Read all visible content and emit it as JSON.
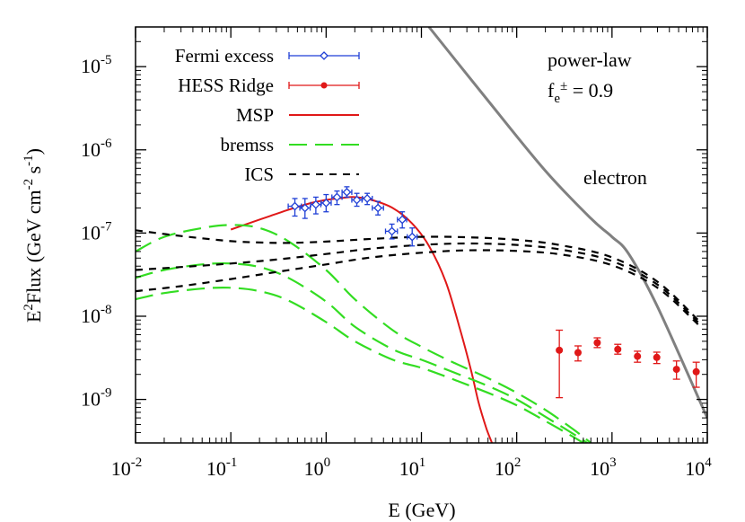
{
  "chart_data": {
    "type": "line",
    "xlabel": "E (GeV)",
    "ylabel_main": "E",
    "ylabel_sup1": "2",
    "ylabel_mid": "Flux (GeV cm",
    "ylabel_sup2": "-2",
    "ylabel_mid2": " s",
    "ylabel_sup3": "-1",
    "ylabel_end": ")",
    "xscale": "log",
    "yscale": "log",
    "xlim": [
      0.01,
      10000
    ],
    "ylim": [
      3e-10,
      3e-05
    ],
    "x_ticks": [
      {
        "value": 0.01,
        "base": "10",
        "exp": "-2"
      },
      {
        "value": 0.1,
        "base": "10",
        "exp": "-1"
      },
      {
        "value": 1,
        "base": "10",
        "exp": "0"
      },
      {
        "value": 10,
        "base": "10",
        "exp": "1"
      },
      {
        "value": 100,
        "base": "10",
        "exp": "2"
      },
      {
        "value": 1000,
        "base": "10",
        "exp": "3"
      },
      {
        "value": 10000,
        "base": "10",
        "exp": "4"
      }
    ],
    "y_ticks": [
      {
        "value": 1e-09,
        "base": "10",
        "exp": "-9"
      },
      {
        "value": 1e-08,
        "base": "10",
        "exp": "-8"
      },
      {
        "value": 1e-07,
        "base": "10",
        "exp": "-7"
      },
      {
        "value": 1e-06,
        "base": "10",
        "exp": "-6"
      },
      {
        "value": 1e-05,
        "base": "10",
        "exp": "-5"
      }
    ],
    "annotations": {
      "model": "power-law",
      "fraction_base": "f",
      "fraction_sub": "e",
      "fraction_sup": "±",
      "fraction_value": " = 0.9",
      "electron_label": "electron"
    },
    "legend": [
      {
        "label": "Fermi excess",
        "color": "#1f3fd6",
        "style": "errorbar-diamond"
      },
      {
        "label": "HESS Ridge",
        "color": "#e01818",
        "style": "errorbar-circle"
      },
      {
        "label": "MSP",
        "color": "#e01818",
        "style": "solid"
      },
      {
        "label": "bremss",
        "color": "#33dd22",
        "style": "long-dash"
      },
      {
        "label": "ICS",
        "color": "#000000",
        "style": "short-dash"
      }
    ],
    "series": [
      {
        "id": "electron",
        "color": "#808080",
        "style": "solid",
        "points": [
          [
            12,
            3e-05
          ],
          [
            50,
            3.9e-06
          ],
          [
            200,
            5.6e-07
          ],
          [
            600,
            1.5e-07
          ],
          [
            1000,
            9e-08
          ],
          [
            1500,
            5.6e-08
          ],
          [
            3000,
            1.3e-08
          ],
          [
            10000,
            6e-10
          ]
        ]
      },
      {
        "id": "msp",
        "color": "#e01818",
        "style": "solid",
        "points": [
          [
            0.1,
            1.1e-07
          ],
          [
            0.2,
            1.45e-07
          ],
          [
            0.4,
            1.9e-07
          ],
          [
            0.7,
            2.3e-07
          ],
          [
            1,
            2.5e-07
          ],
          [
            1.5,
            2.65e-07
          ],
          [
            2,
            2.7e-07
          ],
          [
            3,
            2.5e-07
          ],
          [
            5,
            2e-07
          ],
          [
            8,
            1.3e-07
          ],
          [
            12,
            7e-08
          ],
          [
            18,
            2.6e-08
          ],
          [
            25,
            7.5e-09
          ],
          [
            33,
            2.3e-09
          ],
          [
            40,
            9e-10
          ],
          [
            48,
            4.5e-10
          ],
          [
            55,
            3e-10
          ]
        ]
      },
      {
        "id": "bremss-1",
        "color": "#33dd22",
        "style": "long-dash",
        "points": [
          [
            0.01,
            6e-08
          ],
          [
            0.02,
            9e-08
          ],
          [
            0.05,
            1.15e-07
          ],
          [
            0.1,
            1.25e-07
          ],
          [
            0.2,
            1.15e-07
          ],
          [
            0.4,
            8e-08
          ],
          [
            1,
            3.6e-08
          ],
          [
            2,
            1.6e-08
          ],
          [
            5,
            6.8e-09
          ],
          [
            10,
            4.3e-09
          ],
          [
            20,
            2.9e-09
          ],
          [
            50,
            1.8e-09
          ],
          [
            100,
            1.2e-09
          ],
          [
            200,
            7.5e-10
          ],
          [
            400,
            4.3e-10
          ],
          [
            600,
            3e-10
          ]
        ]
      },
      {
        "id": "bremss-2",
        "color": "#33dd22",
        "style": "long-dash",
        "points": [
          [
            0.01,
            2.9e-08
          ],
          [
            0.02,
            3.6e-08
          ],
          [
            0.05,
            4.2e-08
          ],
          [
            0.1,
            4.3e-08
          ],
          [
            0.2,
            3.9e-08
          ],
          [
            0.4,
            2.9e-08
          ],
          [
            1,
            1.5e-08
          ],
          [
            2,
            7.5e-09
          ],
          [
            5,
            4e-09
          ],
          [
            10,
            3e-09
          ],
          [
            20,
            2.2e-09
          ],
          [
            50,
            1.45e-09
          ],
          [
            100,
            1e-09
          ],
          [
            200,
            6.2e-10
          ],
          [
            400,
            3.8e-10
          ],
          [
            550,
            3e-10
          ]
        ]
      },
      {
        "id": "bremss-3",
        "color": "#33dd22",
        "style": "long-dash",
        "points": [
          [
            0.01,
            1.6e-08
          ],
          [
            0.02,
            1.9e-08
          ],
          [
            0.05,
            2.15e-08
          ],
          [
            0.1,
            2.2e-08
          ],
          [
            0.2,
            2e-08
          ],
          [
            0.4,
            1.55e-08
          ],
          [
            1,
            8.5e-09
          ],
          [
            2,
            5e-09
          ],
          [
            5,
            3e-09
          ],
          [
            10,
            2.4e-09
          ],
          [
            20,
            1.8e-09
          ],
          [
            50,
            1.2e-09
          ],
          [
            100,
            8.5e-10
          ],
          [
            200,
            5.5e-10
          ],
          [
            400,
            3.5e-10
          ],
          [
            500,
            3e-10
          ]
        ]
      },
      {
        "id": "ics-1",
        "color": "#000000",
        "style": "short-dash",
        "points": [
          [
            0.01,
            1.08e-07
          ],
          [
            0.03,
            9.2e-08
          ],
          [
            0.1,
            8e-08
          ],
          [
            0.2,
            7.7e-08
          ],
          [
            0.4,
            7.6e-08
          ],
          [
            1,
            7.9e-08
          ],
          [
            3,
            8.5e-08
          ],
          [
            10,
            9e-08
          ],
          [
            30,
            8.9e-08
          ],
          [
            100,
            8.3e-08
          ],
          [
            300,
            7.1e-08
          ],
          [
            1000,
            5.1e-08
          ],
          [
            3000,
            2.6e-08
          ],
          [
            8000,
            9e-09
          ]
        ]
      },
      {
        "id": "ics-2",
        "color": "#000000",
        "style": "short-dash",
        "points": [
          [
            0.01,
            3.6e-08
          ],
          [
            0.03,
            3.9e-08
          ],
          [
            0.1,
            4.3e-08
          ],
          [
            0.3,
            4.8e-08
          ],
          [
            1,
            5.6e-08
          ],
          [
            3,
            6.5e-08
          ],
          [
            10,
            7.2e-08
          ],
          [
            30,
            7.5e-08
          ],
          [
            100,
            7.2e-08
          ],
          [
            300,
            6.3e-08
          ],
          [
            1000,
            4.6e-08
          ],
          [
            3000,
            2.4e-08
          ],
          [
            8000,
            8.5e-09
          ]
        ]
      },
      {
        "id": "ics-3",
        "color": "#000000",
        "style": "short-dash",
        "points": [
          [
            0.01,
            2e-08
          ],
          [
            0.03,
            2.3e-08
          ],
          [
            0.1,
            2.8e-08
          ],
          [
            0.3,
            3.4e-08
          ],
          [
            1,
            4.2e-08
          ],
          [
            3,
            5.1e-08
          ],
          [
            10,
            5.8e-08
          ],
          [
            30,
            6.2e-08
          ],
          [
            100,
            6.1e-08
          ],
          [
            300,
            5.5e-08
          ],
          [
            1000,
            4.1e-08
          ],
          [
            3000,
            2.2e-08
          ],
          [
            8000,
            8e-09
          ]
        ]
      }
    ],
    "fermi_points": [
      {
        "x": 0.47,
        "y": 2.1e-07,
        "xlo": 0.4,
        "xhi": 0.55,
        "ylo": 1.6e-07,
        "yhi": 2.6e-07
      },
      {
        "x": 0.6,
        "y": 2e-07,
        "xlo": 0.53,
        "xhi": 0.68,
        "ylo": 1.5e-07,
        "yhi": 2.6e-07
      },
      {
        "x": 0.78,
        "y": 2.2e-07,
        "xlo": 0.69,
        "xhi": 0.88,
        "ylo": 1.7e-07,
        "yhi": 2.7e-07
      },
      {
        "x": 1.0,
        "y": 2.3e-07,
        "xlo": 0.89,
        "xhi": 1.13,
        "ylo": 1.8e-07,
        "yhi": 2.9e-07
      },
      {
        "x": 1.3,
        "y": 2.7e-07,
        "xlo": 1.15,
        "xhi": 1.47,
        "ylo": 2.2e-07,
        "yhi": 3.2e-07
      },
      {
        "x": 1.65,
        "y": 3.1e-07,
        "xlo": 1.47,
        "xhi": 1.86,
        "ylo": 2.7e-07,
        "yhi": 3.6e-07
      },
      {
        "x": 2.1,
        "y": 2.5e-07,
        "xlo": 1.86,
        "xhi": 2.38,
        "ylo": 2.1e-07,
        "yhi": 3e-07
      },
      {
        "x": 2.7,
        "y": 2.6e-07,
        "xlo": 2.4,
        "xhi": 3.05,
        "ylo": 2.2e-07,
        "yhi": 3e-07
      },
      {
        "x": 3.5,
        "y": 2e-07,
        "xlo": 3.05,
        "xhi": 4.0,
        "ylo": 1.65e-07,
        "yhi": 2.4e-07
      },
      {
        "x": 4.9,
        "y": 1.05e-07,
        "xlo": 4.2,
        "xhi": 5.6,
        "ylo": 8.5e-08,
        "yhi": 1.28e-07
      },
      {
        "x": 6.3,
        "y": 1.45e-07,
        "xlo": 5.6,
        "xhi": 7.0,
        "ylo": 1.15e-07,
        "yhi": 1.8e-07
      },
      {
        "x": 8.0,
        "y": 9e-08,
        "xlo": 7.1,
        "xhi": 9.0,
        "ylo": 7e-08,
        "yhi": 1.15e-07
      }
    ],
    "hess_points": [
      {
        "x": 280,
        "y": 3.9e-09,
        "ylo": 1.05e-09,
        "yhi": 6.8e-09
      },
      {
        "x": 440,
        "y": 3.65e-09,
        "ylo": 2.9e-09,
        "yhi": 4.4e-09
      },
      {
        "x": 700,
        "y": 4.8e-09,
        "ylo": 4.2e-09,
        "yhi": 5.5e-09
      },
      {
        "x": 1150,
        "y": 4e-09,
        "ylo": 3.5e-09,
        "yhi": 4.6e-09
      },
      {
        "x": 1850,
        "y": 3.3e-09,
        "ylo": 2.8e-09,
        "yhi": 3.8e-09
      },
      {
        "x": 2950,
        "y": 3.2e-09,
        "ylo": 2.7e-09,
        "yhi": 3.7e-09
      },
      {
        "x": 4750,
        "y": 2.3e-09,
        "ylo": 1.75e-09,
        "yhi": 2.9e-09
      },
      {
        "x": 7650,
        "y": 2.15e-09,
        "ylo": 1.4e-09,
        "yhi": 2.8e-09
      }
    ]
  }
}
